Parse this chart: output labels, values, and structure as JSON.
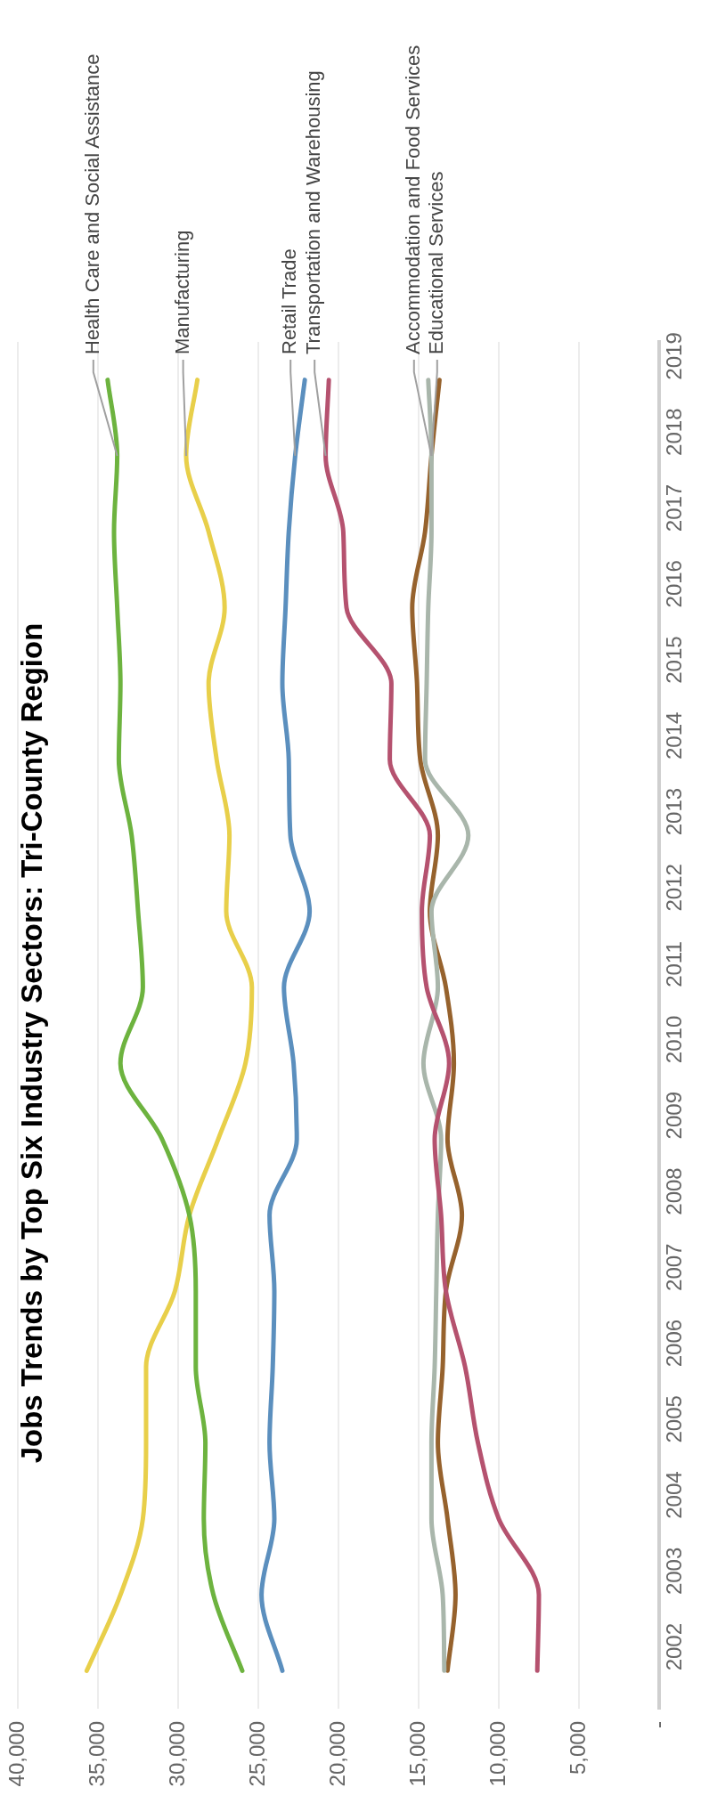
{
  "chart_data": {
    "type": "line",
    "orientation": "horizontal",
    "title": "Jobs Trends by Top Six Industry Sectors: Tri-County Region",
    "categories": [
      "2019",
      "2018",
      "2017",
      "2016",
      "2015",
      "2014",
      "2013",
      "2012",
      "2011",
      "2010",
      "2009",
      "2008",
      "2007",
      "2006",
      "2005",
      "2004",
      "2003",
      "2002"
    ],
    "xlim": [
      40000,
      0
    ],
    "xticks": [
      {
        "value": 40000,
        "label": "40,000"
      },
      {
        "value": 35000,
        "label": "35,000"
      },
      {
        "value": 30000,
        "label": "30,000"
      },
      {
        "value": 25000,
        "label": "25,000"
      },
      {
        "value": 20000,
        "label": "20,000"
      },
      {
        "value": 15000,
        "label": "15,000"
      },
      {
        "value": 10000,
        "label": "10,000"
      },
      {
        "value": 5000,
        "label": "5,000"
      },
      {
        "value": 0,
        "label": "-"
      }
    ],
    "grid": "x",
    "legend": false,
    "marker": "none",
    "line_style": "solid",
    "series": [
      {
        "name": "Health Care and Social Assistance",
        "color": "#6db33f",
        "values": [
          34400,
          33800,
          34000,
          33800,
          33600,
          33700,
          32900,
          32500,
          32200,
          33600,
          31000,
          29300,
          28900,
          28900,
          28300,
          28400,
          27800,
          26000
        ]
      },
      {
        "name": "Manufacturing",
        "color": "#e8cf4a",
        "values": [
          28800,
          29500,
          28100,
          27100,
          28100,
          27600,
          26800,
          27000,
          25400,
          25800,
          27500,
          29300,
          30200,
          32000,
          32000,
          32200,
          33600,
          35700
        ]
      },
      {
        "name": "Retail Trade",
        "color": "#5b8fbe",
        "values": [
          22100,
          22700,
          23100,
          23300,
          23500,
          23100,
          23000,
          21800,
          23400,
          22800,
          22600,
          24300,
          24000,
          24100,
          24300,
          24000,
          24800,
          23500
        ]
      },
      {
        "name": "Transportation and Warehousing",
        "color": "#b5526f",
        "values": [
          20600,
          20800,
          19700,
          19500,
          16700,
          16800,
          14300,
          14800,
          14500,
          13100,
          14000,
          13600,
          13300,
          12100,
          11300,
          10000,
          7500,
          7600
        ]
      },
      {
        "name": "Accommodation and Food Services",
        "color": "#a9b6ab",
        "values": [
          14400,
          14200,
          14200,
          14400,
          14500,
          14600,
          11900,
          14200,
          13800,
          14700,
          13600,
          13800,
          13900,
          14000,
          14200,
          14200,
          13500,
          13400
        ]
      },
      {
        "name": "Educational Services",
        "color": "#96622d",
        "values": [
          13700,
          14200,
          14600,
          15400,
          15100,
          14900,
          13800,
          14300,
          13300,
          12800,
          13200,
          12300,
          13300,
          13500,
          13800,
          13200,
          12700,
          13200
        ]
      }
    ]
  }
}
